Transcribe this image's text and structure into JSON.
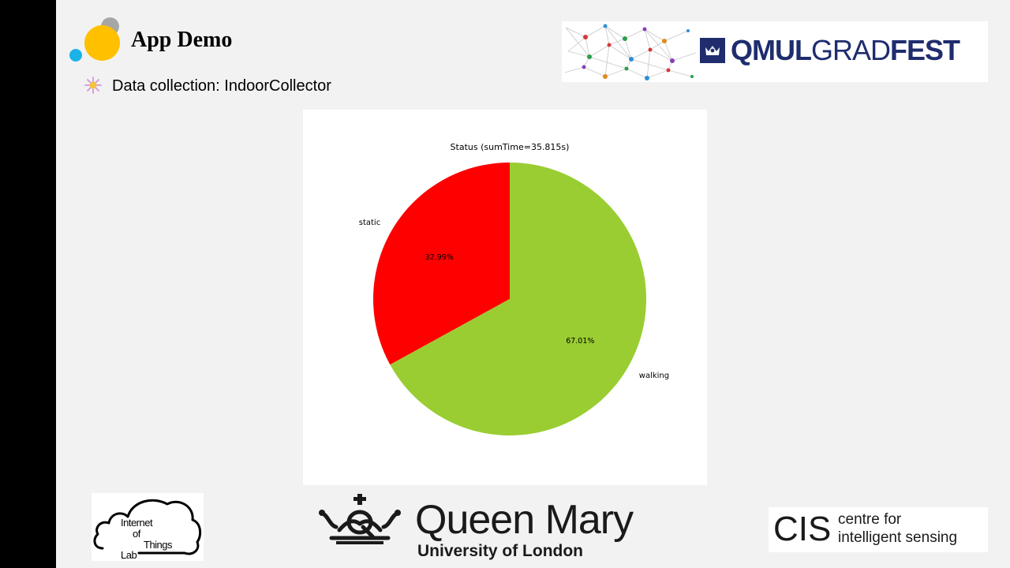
{
  "slide": {
    "title": "App Demo",
    "bullet_text": "Data collection: IndoorCollector"
  },
  "logos": {
    "gradfest": {
      "bold_left": "QMUL",
      "light": "GRAD",
      "bold_right": "FEST",
      "color": "#1f2d6e"
    },
    "iot": {
      "line1": "Internet",
      "line2": "of",
      "line3": "Things",
      "line4": "Lab"
    },
    "qmul": {
      "name": "Queen Mary",
      "subtitle": "University of London"
    },
    "cis": {
      "abbr": "CIS",
      "line1": "centre for",
      "line2": "intelligent sensing"
    }
  },
  "colors": {
    "background": "#f2f2f2",
    "left_bar": "#000000",
    "circle_yellow": "#ffc000",
    "circle_blue": "#1ab3e8",
    "circle_gray": "#a6a6a6"
  },
  "chart_data": {
    "type": "pie",
    "title": "Status (sumTime=35.815s)",
    "categories": [
      "static",
      "walking"
    ],
    "values": [
      32.99,
      67.01
    ],
    "value_labels": [
      "32.99%",
      "67.01%"
    ],
    "colors": [
      "#ff0000",
      "#9acd32"
    ],
    "start_angle_deg": 90,
    "direction": "counterclockwise"
  }
}
